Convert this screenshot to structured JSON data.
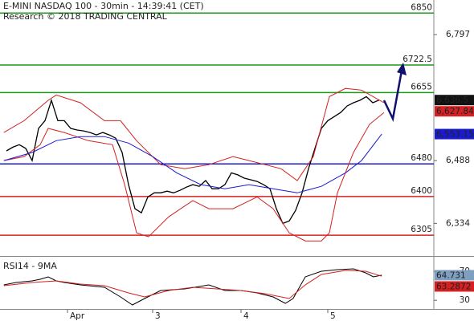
{
  "chart_data": [
    {
      "type": "line",
      "title": "E-MINI NASDAQ 100 - 30min - 14:39:41 (CET)",
      "subtitle": "Research © 2018 TRADING CENTRAL",
      "xlim": [
        0,
        67.5
      ],
      "ylim": [
        6256,
        6882
      ],
      "yticks": [
        {
          "value": 6797,
          "label": "6,797"
        },
        {
          "value": 6488,
          "label": "6,488"
        },
        {
          "value": 6334,
          "label": "6,334"
        }
      ],
      "series": [
        {
          "color": "#000000",
          "width": 1.3,
          "x": [
            1,
            2,
            3,
            4,
            5,
            6,
            7,
            8,
            9,
            10,
            11,
            12,
            13,
            14,
            15,
            16,
            17,
            18,
            19,
            20,
            21,
            22,
            23,
            24,
            25,
            26,
            27,
            28,
            29,
            30,
            31,
            32,
            33,
            34,
            35,
            36,
            37,
            38,
            39,
            40,
            41,
            42,
            43,
            44,
            45,
            46,
            47,
            48,
            49,
            50,
            51,
            52,
            53,
            54,
            55,
            56,
            57,
            58,
            59
          ],
          "values": [
            6512,
            6521,
            6527,
            6518,
            6488,
            6567,
            6586,
            6636,
            6586,
            6586,
            6567,
            6563,
            6561,
            6557,
            6551,
            6557,
            6551,
            6543,
            6508,
            6429,
            6370,
            6360,
            6399,
            6409,
            6409,
            6413,
            6409,
            6415,
            6423,
            6429,
            6425,
            6439,
            6419,
            6419,
            6429,
            6458,
            6453,
            6445,
            6441,
            6437,
            6429,
            6419,
            6370,
            6334,
            6340,
            6366,
            6409,
            6468,
            6518,
            6567,
            6586,
            6596,
            6606,
            6622,
            6630,
            6636,
            6645,
            6630,
            6636.5
          ]
        },
        {
          "color": "#d42020",
          "width": 1,
          "x": [
            0.6,
            3.75,
            7.5,
            8.75,
            12.5,
            16.25,
            18.75,
            21.25,
            25,
            28.75,
            32.5,
            36.25,
            38.75,
            41.25,
            43.75,
            46.25,
            48.75,
            51.25,
            53.75,
            56.25,
            59.75
          ],
          "values": [
            6557,
            6586,
            6636,
            6649,
            6630,
            6586,
            6586,
            6537,
            6478,
            6468,
            6478,
            6498,
            6488,
            6478,
            6468,
            6439,
            6498,
            6645,
            6665,
            6661,
            6630
          ]
        },
        {
          "color": "#d42020",
          "width": 1,
          "x": [
            0.6,
            3.75,
            6.25,
            7.5,
            10,
            13.75,
            17.5,
            19.4,
            21.25,
            23.1,
            26.25,
            30,
            32.5,
            36.25,
            40,
            42.5,
            45,
            47.5,
            50,
            51.25,
            52.5,
            55,
            57.5,
            59.75
          ],
          "values": [
            6488,
            6498,
            6527,
            6567,
            6557,
            6537,
            6527,
            6429,
            6311,
            6301,
            6350,
            6390,
            6370,
            6370,
            6399,
            6370,
            6311,
            6291,
            6291,
            6311,
            6409,
            6508,
            6577,
            6606
          ]
        },
        {
          "color": "#1a1ad0",
          "width": 1,
          "x": [
            0.6,
            5,
            8.75,
            12.5,
            16.25,
            20,
            23.75,
            27.5,
            31.25,
            35,
            38.75,
            42.5,
            46.25,
            50,
            53.75,
            56.25,
            59.4
          ],
          "values": [
            6488,
            6508,
            6537,
            6547,
            6547,
            6531,
            6498,
            6458,
            6429,
            6419,
            6429,
            6419,
            6409,
            6425,
            6458,
            6488,
            6553.15
          ]
        }
      ],
      "levels": [
        {
          "value": 6850,
          "color": "#1a9a1a"
        },
        {
          "value": 6722.5,
          "color": "#1a9a1a"
        },
        {
          "value": 6655,
          "color": "#1a9a1a"
        },
        {
          "value": 6480,
          "color": "#1a1ad0"
        },
        {
          "value": 6400,
          "color": "#d42020"
        },
        {
          "value": 6305,
          "color": "#d42020"
        }
      ],
      "tags": [
        {
          "value": 6636.5,
          "label": "6,636.5",
          "color": "#111111"
        },
        {
          "value": 6627.84,
          "label": "6,627.84",
          "color": "#d42020"
        },
        {
          "value": 6553.15,
          "label": "6,553.15",
          "color": "#1a1ad0"
        }
      ]
    },
    {
      "type": "line",
      "title": "RSI14 - 9MA",
      "xlim": [
        0,
        67.5
      ],
      "ylim": [
        18,
        88
      ],
      "yticks": [
        70,
        30
      ],
      "xticks": [
        {
          "value": 10.5,
          "label": "Apr"
        },
        {
          "value": 23.75,
          "label": "3"
        },
        {
          "value": 37.5,
          "label": "4"
        },
        {
          "value": 51,
          "label": "5"
        }
      ],
      "series": [
        {
          "color": "#000000",
          "width": 1,
          "x": [
            0.6,
            2.5,
            5,
            6.25,
            7.5,
            8.75,
            10,
            12.5,
            16.25,
            18.75,
            20.6,
            22.5,
            25,
            28.75,
            32.5,
            35,
            37.5,
            40,
            42.5,
            44.4,
            45.6,
            47.5,
            50,
            52.5,
            55,
            56.9,
            58.1,
            59.4
          ],
          "values": [
            51.3,
            54.7,
            56.9,
            59.1,
            62.4,
            56.9,
            54.7,
            51.3,
            48,
            34.7,
            23.6,
            32.4,
            43.6,
            45.8,
            51.3,
            43.6,
            43.6,
            40.2,
            34.7,
            25.8,
            32.4,
            62.4,
            70.2,
            72.4,
            73.6,
            68,
            62.4,
            64.731
          ]
        },
        {
          "color": "#d42020",
          "width": 1,
          "x": [
            0.6,
            5,
            8.75,
            12.5,
            16.25,
            20,
            22.5,
            26.25,
            30,
            33.75,
            37.5,
            41.25,
            45,
            47.5,
            50,
            53.75,
            56.9,
            59.4
          ],
          "values": [
            50.2,
            54.7,
            56.9,
            52.4,
            50.2,
            40.2,
            34.7,
            43.6,
            48,
            45.8,
            43.6,
            39.1,
            32.4,
            51.3,
            65.8,
            71.3,
            70.2,
            63.2872
          ]
        }
      ],
      "tags": [
        {
          "value": 64.731,
          "label": "64.731",
          "color": "#7f9fc0"
        },
        {
          "value": 63.2872,
          "label": "63.2872",
          "color": "#d42020"
        }
      ]
    }
  ]
}
